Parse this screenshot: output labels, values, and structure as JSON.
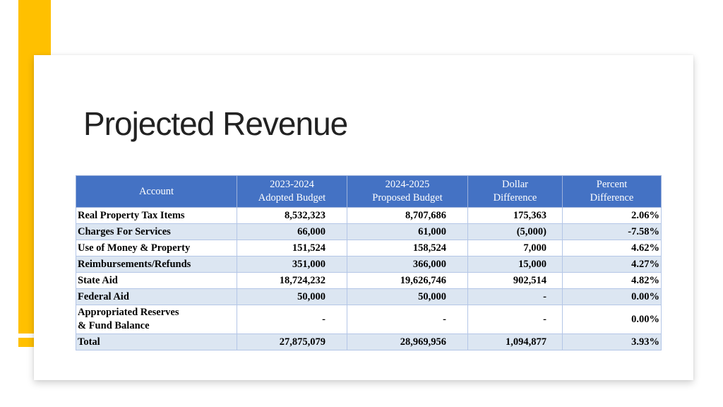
{
  "slide": {
    "title": "Projected Revenue"
  },
  "colors": {
    "accent": "#FFC000",
    "header_fill": "#4472C4",
    "band_fill": "#DCE6F2"
  },
  "table": {
    "headers": [
      {
        "line1": "Account",
        "line2": ""
      },
      {
        "line1": "2023-2024",
        "line2": "Adopted Budget"
      },
      {
        "line1": "2024-2025",
        "line2": "Proposed Budget"
      },
      {
        "line1": "Dollar",
        "line2": "Difference"
      },
      {
        "line1": "Percent",
        "line2": "Difference"
      }
    ],
    "rows": [
      {
        "account": "Real Property Tax Items",
        "adopted": "8,532,323",
        "proposed": "8,707,686",
        "dollar_diff": "175,363",
        "percent_diff": "2.06%"
      },
      {
        "account": "Charges For Services",
        "adopted": "66,000",
        "proposed": "61,000",
        "dollar_diff": "(5,000)",
        "percent_diff": "-7.58%"
      },
      {
        "account": "Use of Money & Property",
        "adopted": "151,524",
        "proposed": "158,524",
        "dollar_diff": "7,000",
        "percent_diff": "4.62%"
      },
      {
        "account": "Reimbursements/Refunds",
        "adopted": "351,000",
        "proposed": "366,000",
        "dollar_diff": "15,000",
        "percent_diff": "4.27%"
      },
      {
        "account": "State Aid",
        "adopted": "18,724,232",
        "proposed": "19,626,746",
        "dollar_diff": "902,514",
        "percent_diff": "4.82%"
      },
      {
        "account": "Federal Aid",
        "adopted": "50,000",
        "proposed": "50,000",
        "dollar_diff": "-",
        "percent_diff": "0.00%"
      },
      {
        "account_line1": "Appropriated Reserves",
        "account_line2": "& Fund Balance",
        "adopted": "-",
        "proposed": "-",
        "dollar_diff": "-",
        "percent_diff": "0.00%"
      },
      {
        "account": "Total",
        "adopted": "27,875,079",
        "proposed": "28,969,956",
        "dollar_diff": "1,094,877",
        "percent_diff": "3.93%"
      }
    ]
  }
}
